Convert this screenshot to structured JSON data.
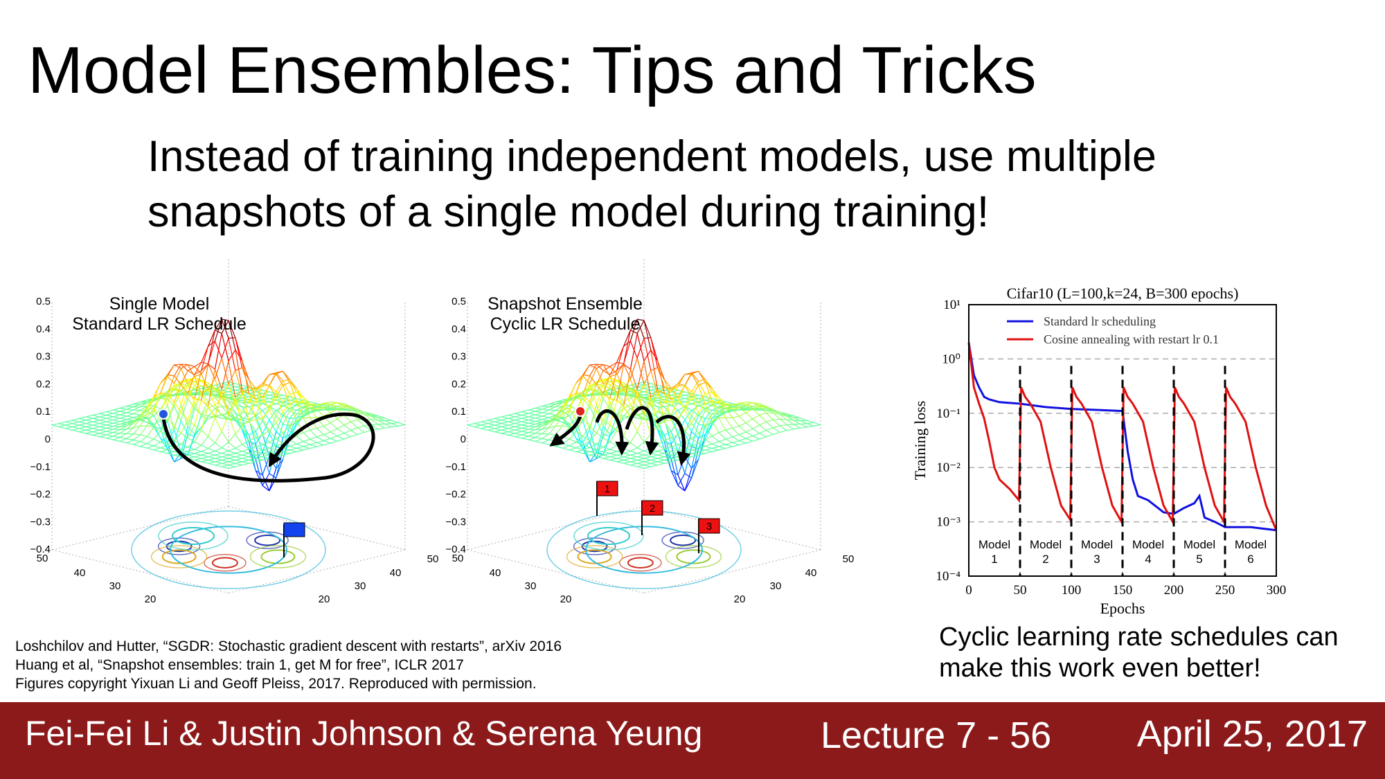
{
  "title": "Model Ensembles: Tips and Tricks",
  "subtitle": [
    "Instead of training independent models, use multiple",
    "snapshots of a single model during training!"
  ],
  "figures": [
    {
      "labels": [
        "Single Model",
        "Standard LR Schedule"
      ],
      "zticks": [
        "0.5",
        "0.4",
        "0.3",
        "0.2",
        "0.1",
        "0",
        "−0.1",
        "−0.2",
        "−0.3",
        "−0.4"
      ],
      "base_left_ticks": [
        "50",
        "40",
        "30",
        "20"
      ],
      "base_right_ticks": [
        "50",
        "40",
        "30",
        "20"
      ]
    },
    {
      "labels": [
        "Snapshot Ensemble",
        "Cyclic LR Schedule"
      ],
      "zticks": [
        "0.5",
        "0.4",
        "0.3",
        "0.2",
        "0.1",
        "0",
        "−0.1",
        "−0.2",
        "−0.3",
        "−0.4"
      ],
      "base_left_ticks": [
        "50",
        "40",
        "30",
        "20"
      ],
      "base_right_ticks": [
        "50",
        "40",
        "30",
        "20"
      ],
      "flags": [
        "1",
        "2",
        "3"
      ]
    }
  ],
  "chart_data": {
    "type": "line",
    "title": "Cifar10 (L=100,k=24, B=300 epochs)",
    "x_label": "Epochs",
    "y_label": "Training loss",
    "log_y": true,
    "grid": true,
    "legend": "upper left",
    "xlim": [
      0,
      300
    ],
    "ylim": [
      0.0001,
      10
    ],
    "xticks": [
      0,
      50,
      100,
      150,
      200,
      250,
      300
    ],
    "yticks": [
      {
        "value": 10,
        "label": "10¹"
      },
      {
        "value": 1,
        "label": "10⁰"
      },
      {
        "value": 0.1,
        "label": "10⁻¹"
      },
      {
        "value": 0.01,
        "label": "10⁻²"
      },
      {
        "value": 0.001,
        "label": "10⁻³"
      },
      {
        "value": 0.0001,
        "label": "10⁻⁴"
      }
    ],
    "restarts": [
      50,
      100,
      150,
      200,
      250
    ],
    "model_labels": [
      [
        "Model",
        "1"
      ],
      [
        "Model",
        "2"
      ],
      [
        "Model",
        "3"
      ],
      [
        "Model",
        "4"
      ],
      [
        "Model",
        "5"
      ],
      [
        "Model",
        "6"
      ]
    ],
    "series": [
      {
        "name": "Standard lr scheduling",
        "color": "#1010e0",
        "x": [
          0,
          5,
          10,
          15,
          20,
          30,
          50,
          75,
          100,
          125,
          150,
          155,
          160,
          165,
          175,
          190,
          200,
          210,
          220,
          225,
          230,
          240,
          250,
          275,
          300
        ],
        "values": [
          2,
          0.5,
          0.3,
          0.2,
          0.18,
          0.16,
          0.15,
          0.13,
          0.12,
          0.115,
          0.11,
          0.02,
          0.006,
          0.003,
          0.0025,
          0.0015,
          0.0014,
          0.0018,
          0.0022,
          0.003,
          0.0012,
          0.001,
          0.0008,
          0.0008,
          0.0007
        ]
      },
      {
        "name": "Cosine annealing with restart lr 0.1",
        "color": "#e01010",
        "x": [
          0,
          5,
          10,
          15,
          20,
          25,
          30,
          40,
          49,
          51,
          55,
          60,
          70,
          80,
          90,
          99,
          101,
          105,
          110,
          120,
          130,
          140,
          149,
          151,
          155,
          160,
          170,
          180,
          190,
          199,
          201,
          205,
          210,
          220,
          230,
          240,
          249,
          251,
          255,
          260,
          270,
          280,
          290,
          300
        ],
        "values": [
          2,
          0.3,
          0.15,
          0.08,
          0.03,
          0.01,
          0.006,
          0.004,
          0.0025,
          0.3,
          0.2,
          0.15,
          0.07,
          0.01,
          0.002,
          0.0011,
          0.3,
          0.2,
          0.15,
          0.07,
          0.01,
          0.002,
          0.001,
          0.3,
          0.2,
          0.15,
          0.07,
          0.01,
          0.002,
          0.001,
          0.3,
          0.2,
          0.15,
          0.07,
          0.01,
          0.002,
          0.001,
          0.3,
          0.2,
          0.15,
          0.07,
          0.01,
          0.002,
          0.0007
        ]
      }
    ]
  },
  "caption": [
    "Cyclic learning rate schedules can",
    "make this work even better!"
  ],
  "citations": [
    "Loshchilov and Hutter, “SGDR: Stochastic gradient descent with restarts”, arXiv 2016",
    "Huang et al, “Snapshot ensembles: train 1, get M for free”, ICLR 2017",
    "Figures copyright Yixuan Li and Geoff Pleiss, 2017. Reproduced with permission."
  ],
  "footer": {
    "authors": "Fei-Fei Li & Justin Johnson & Serena Yeung",
    "lecture": "Lecture 7 - 56",
    "date": "April 25, 2017"
  }
}
